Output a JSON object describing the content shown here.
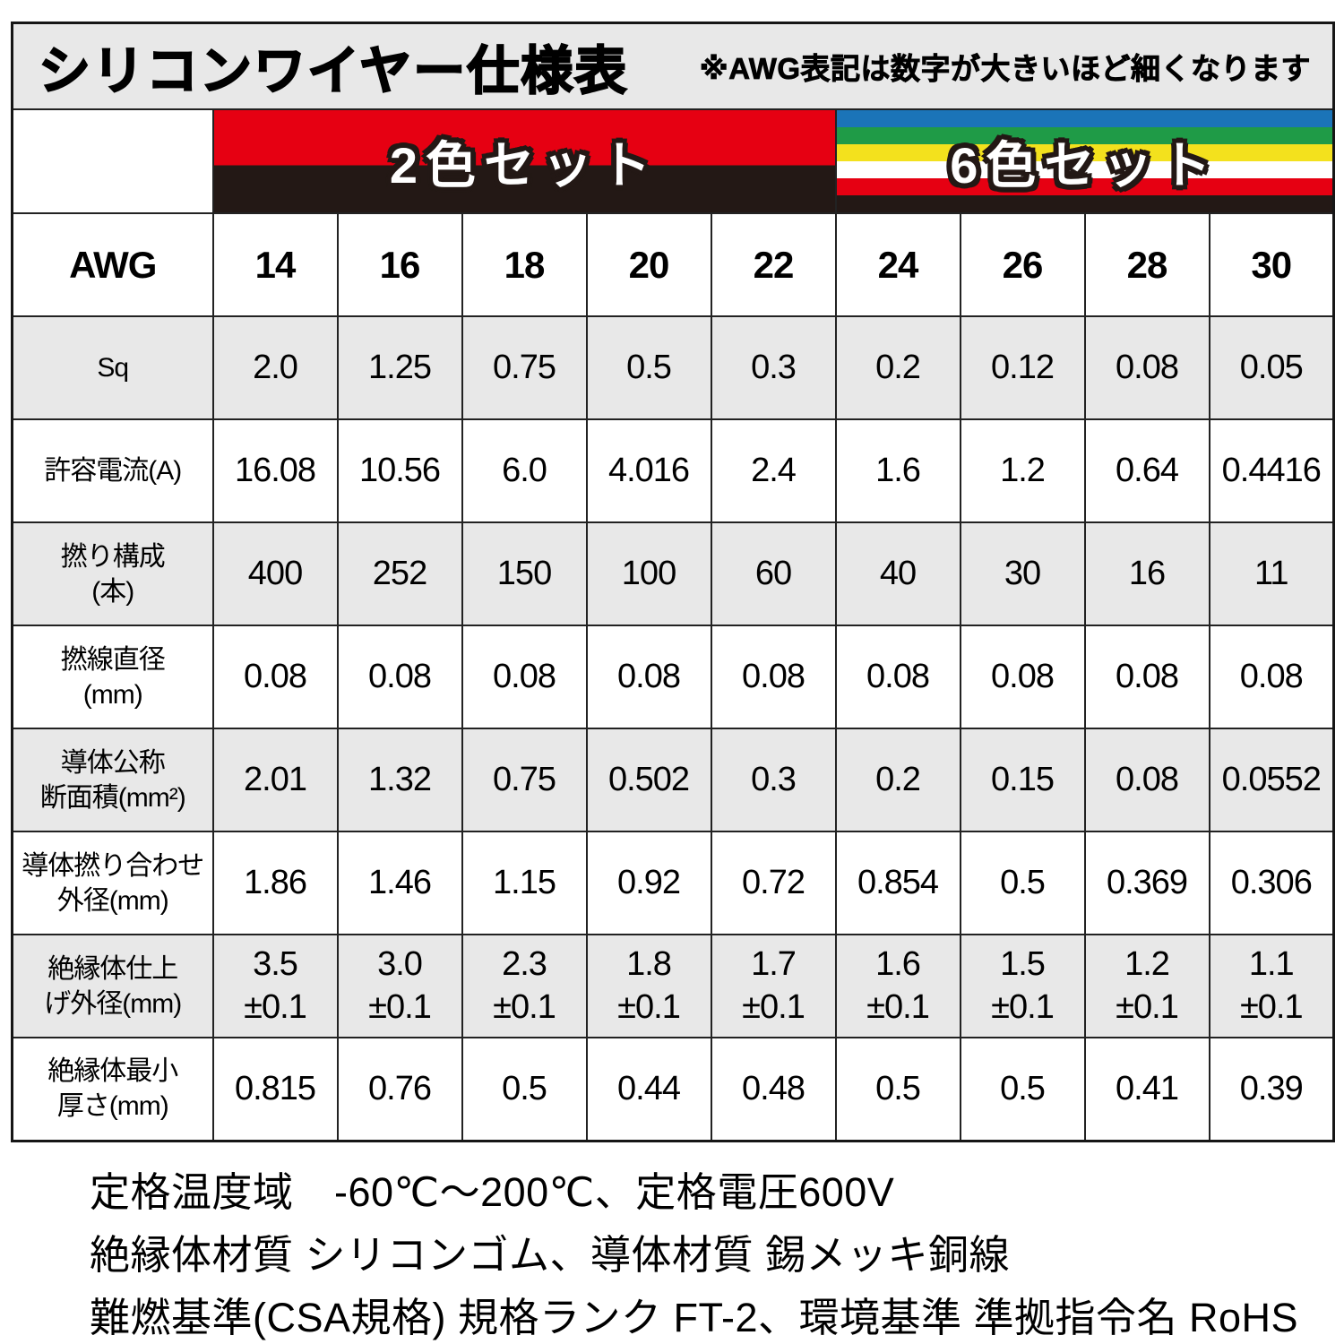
{
  "header": {
    "title": "シリコンワイヤー仕様表",
    "note": "※AWG表記は数字が大きいほど細くなります"
  },
  "bands": {
    "two_color": {
      "label": "2色セット",
      "colors": [
        "#e60012",
        "#231815"
      ],
      "red_fraction_percent": 54
    },
    "six_color": {
      "label": "6色セット",
      "stripe_colors": [
        "#1b74b8",
        "#1f9b47",
        "#f3e11d",
        "#ffffff",
        "#e60012",
        "#231815"
      ]
    }
  },
  "table": {
    "corner_label": "AWG",
    "awg_sizes": [
      "14",
      "16",
      "18",
      "20",
      "22",
      "24",
      "26",
      "28",
      "30"
    ],
    "rows": [
      {
        "label": "Sq",
        "values": [
          "2.0",
          "1.25",
          "0.75",
          "0.5",
          "0.3",
          "0.2",
          "0.12",
          "0.08",
          "0.05"
        ]
      },
      {
        "label": "許容電流(A)",
        "values": [
          "16.08",
          "10.56",
          "6.0",
          "4.016",
          "2.4",
          "1.6",
          "1.2",
          "0.64",
          "0.4416"
        ]
      },
      {
        "label": "撚り構成\n(本)",
        "values": [
          "400",
          "252",
          "150",
          "100",
          "60",
          "40",
          "30",
          "16",
          "11"
        ]
      },
      {
        "label": "撚線直径\n(mm)",
        "values": [
          "0.08",
          "0.08",
          "0.08",
          "0.08",
          "0.08",
          "0.08",
          "0.08",
          "0.08",
          "0.08"
        ]
      },
      {
        "label": "導体公称\n断面積(mm²)",
        "values": [
          "2.01",
          "1.32",
          "0.75",
          "0.502",
          "0.3",
          "0.2",
          "0.15",
          "0.08",
          "0.0552"
        ]
      },
      {
        "label": "導体撚り合わせ\n外径(mm)",
        "values": [
          "1.86",
          "1.46",
          "1.15",
          "0.92",
          "0.72",
          "0.854",
          "0.5",
          "0.369",
          "0.306"
        ]
      },
      {
        "label": "絶縁体仕上\nげ外径(mm)",
        "values": [
          "3.5\n±0.1",
          "3.0\n±0.1",
          "2.3\n±0.1",
          "1.8\n±0.1",
          "1.7\n±0.1",
          "1.6\n±0.1",
          "1.5\n±0.1",
          "1.2\n±0.1",
          "1.1\n±0.1"
        ]
      },
      {
        "label": "絶縁体最小\n厚さ(mm)",
        "values": [
          "0.815",
          "0.76",
          "0.5",
          "0.44",
          "0.48",
          "0.5",
          "0.5",
          "0.41",
          "0.39"
        ]
      }
    ]
  },
  "footer": {
    "lines": [
      "定格温度域　-60℃～200℃、定格電圧600V",
      "絶縁体材質 シリコンゴム、導体材質 錫メッキ銅線",
      "難燃基準(CSA規格) 規格ランク FT-2、環境基準 準拠指令名 RoHS"
    ]
  }
}
